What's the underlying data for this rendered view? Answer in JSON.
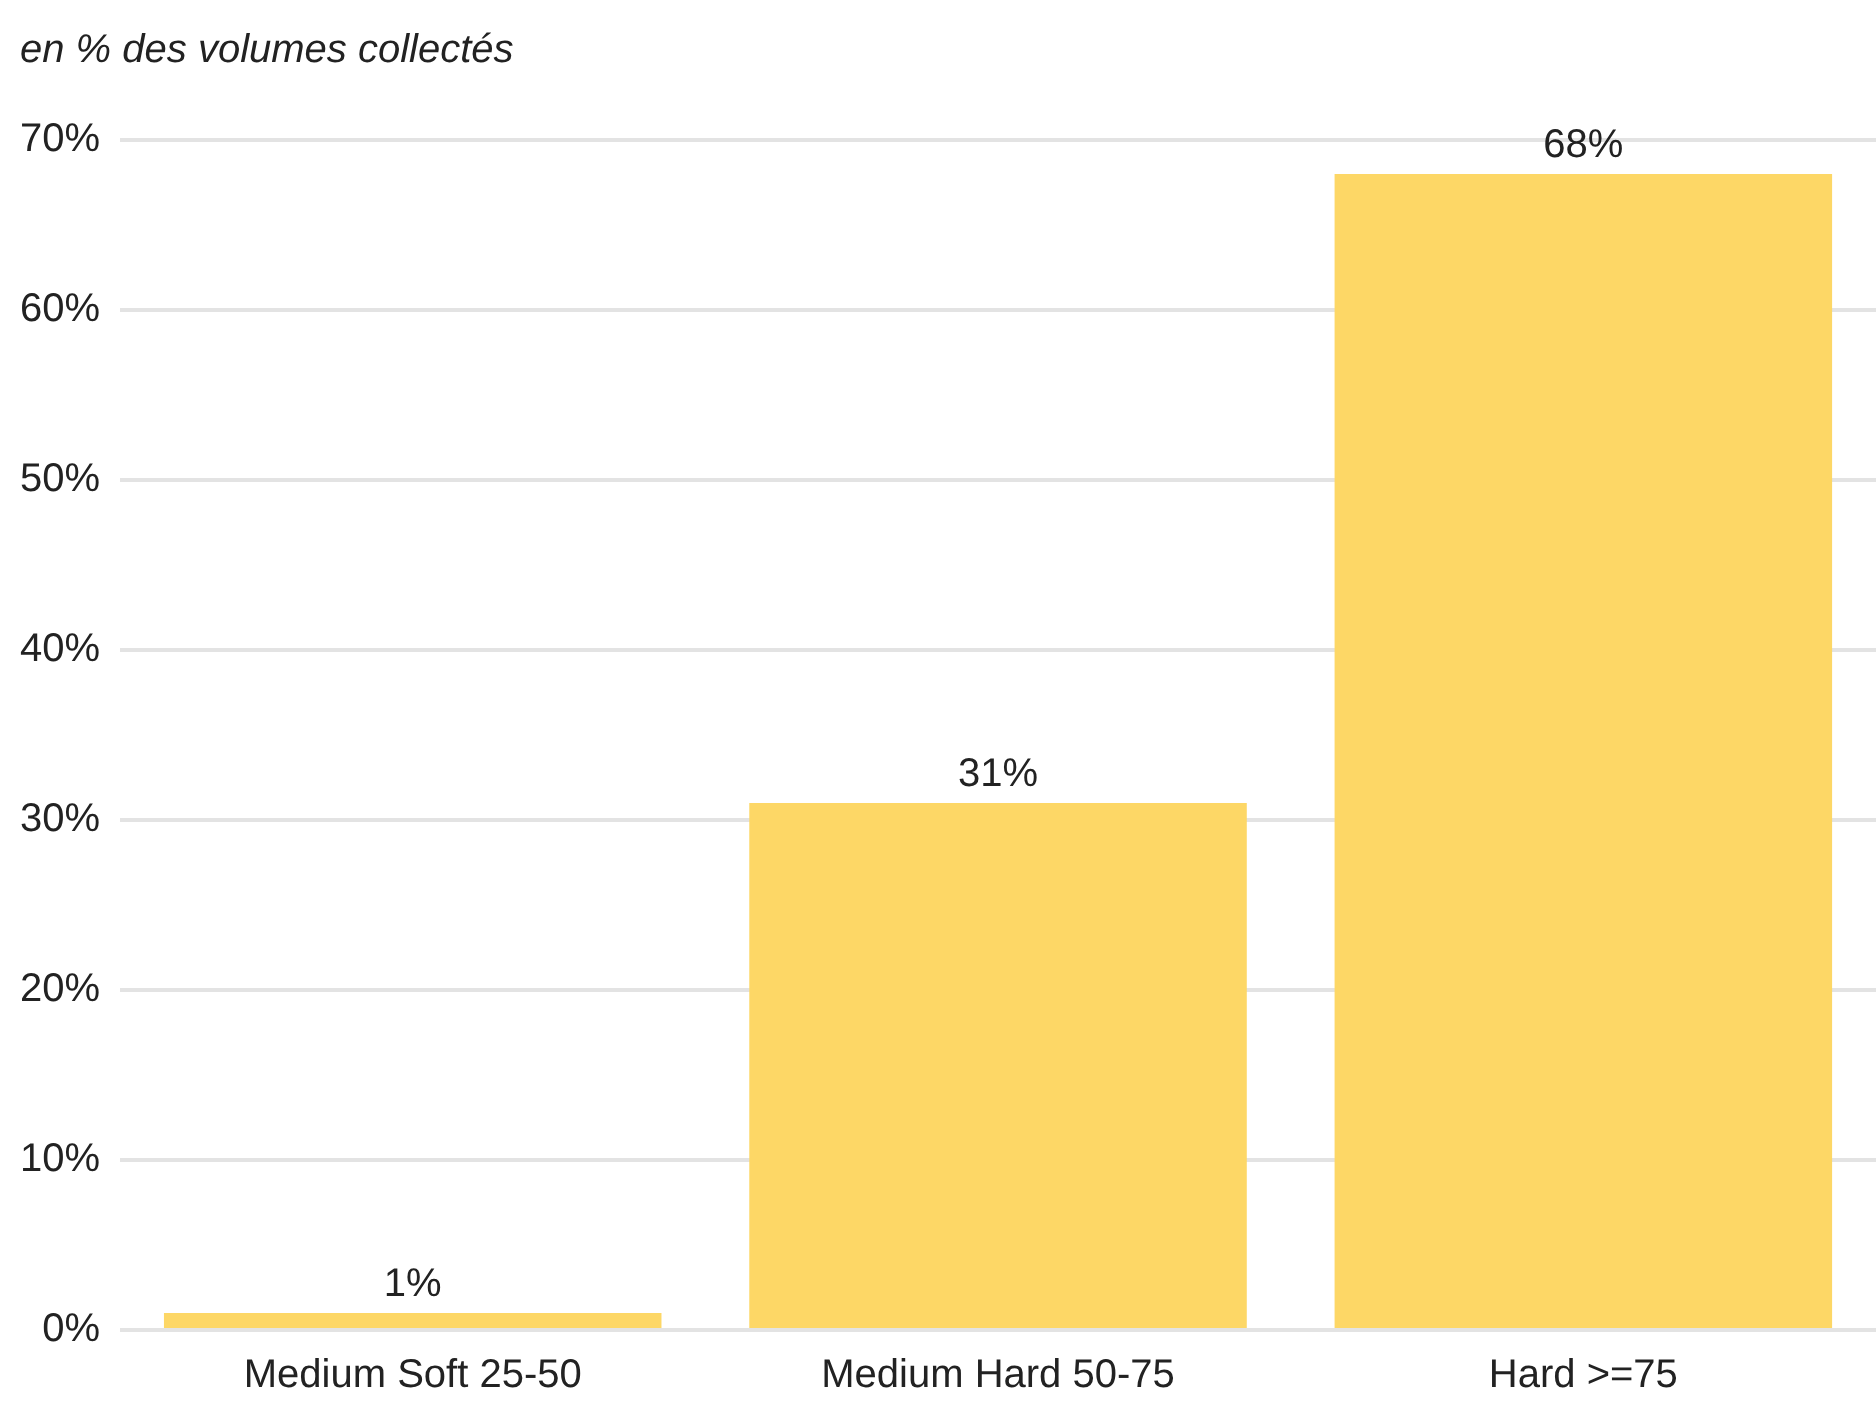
{
  "chart_data": {
    "type": "bar",
    "ylabel": "en % des volumes collectés",
    "categories": [
      "Medium Soft 25-50",
      "Medium Hard 50-75",
      "Hard >=75"
    ],
    "values": [
      1,
      31,
      68
    ],
    "color": "#fdd766",
    "value_labels": [
      "1%",
      "31%",
      "68%"
    ],
    "ylim": [
      0,
      70
    ],
    "yticks": [
      {
        "value": 0,
        "label": "0%"
      },
      {
        "value": 10,
        "label": "10%"
      },
      {
        "value": 20,
        "label": "20%"
      },
      {
        "value": 30,
        "label": "30%"
      },
      {
        "value": 40,
        "label": "40%"
      },
      {
        "value": 50,
        "label": "50%"
      },
      {
        "value": 60,
        "label": "60%"
      },
      {
        "value": 70,
        "label": "70%"
      }
    ],
    "grid": "y",
    "legend": false
  }
}
